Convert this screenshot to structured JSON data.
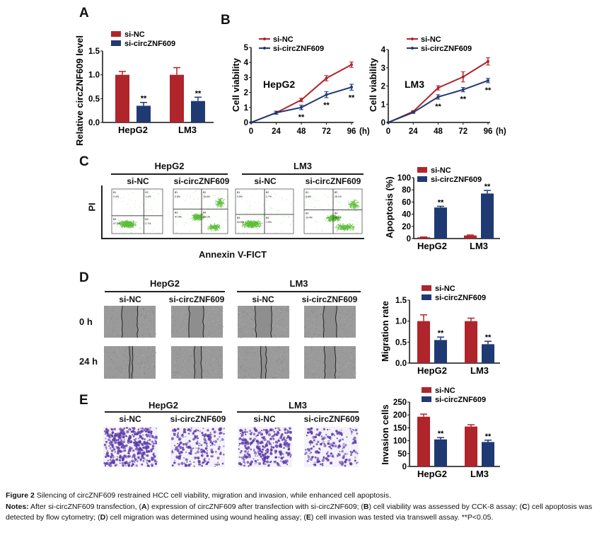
{
  "panel_labels": {
    "a": "A",
    "b": "B",
    "c": "C",
    "d": "D",
    "e": "E"
  },
  "panel_c": {
    "group_labels": [
      "HepG2",
      "LM3"
    ],
    "sub_labels": [
      "si-NC",
      "si-circZNF609",
      "si-NC",
      "si-circZNF609"
    ],
    "y_axis_label": "PI",
    "x_axis_label": "Annexin V-FICT",
    "quadrant_names": [
      "B1",
      "B2",
      "B3",
      "B4"
    ],
    "quadrant_values": [
      [
        "0.4%",
        "1.4%",
        "97.5%",
        "0.7%"
      ],
      [
        "0.8%",
        "16.6%",
        "47.4%",
        "35.1%"
      ],
      [
        "0.5%",
        "2.7%",
        "94.8%",
        "1.9%"
      ],
      [
        "0.6%",
        "26.1%",
        "23.4%",
        "50.0%"
      ]
    ]
  },
  "panel_d": {
    "group_labels": [
      "HepG2",
      "LM3"
    ],
    "sub_labels": [
      "si-NC",
      "si-circZNF609",
      "si-NC",
      "si-circZNF609"
    ],
    "row_labels": [
      "0 h",
      "24 h"
    ]
  },
  "panel_e": {
    "group_labels": [
      "HepG2",
      "LM3"
    ],
    "sub_labels": [
      "si-NC",
      "si-circZNF609",
      "si-NC",
      "si-circZNF609"
    ]
  },
  "colors": {
    "si_nc": "#b0242b",
    "si_circ": "#1f3a73",
    "flow_dots": "#5cbf3a",
    "stain": "#5b3aa8",
    "wound_bg": "#9a9a9a"
  },
  "caption": {
    "title_bold": "Figure 2",
    "title": " Silencing of circZNF609 restrained HCC cell viability, migration and invasion, while enhanced cell apoptosis.",
    "notes_segments": [
      {
        "t": "Notes:",
        "b": true
      },
      {
        "t": " After si-circZNF609 transfection, (",
        "b": false
      },
      {
        "t": "A",
        "b": true
      },
      {
        "t": ") expression of circZNF609 after transfection with si-circZNF609; (",
        "b": false
      },
      {
        "t": "B",
        "b": true
      },
      {
        "t": ") cell viability was assessed by CCK-8 assay; (",
        "b": false
      },
      {
        "t": "C",
        "b": true
      },
      {
        "t": ") cell apoptosis was detected by flow cytometry; (",
        "b": false
      },
      {
        "t": "D",
        "b": true
      },
      {
        "t": ") cell migration was determined using wound healing assay; (",
        "b": false
      },
      {
        "t": "E",
        "b": true
      },
      {
        "t": ") cell invasion was tested via transwell assay. **P<0.05.",
        "b": false
      }
    ]
  },
  "chart_data": [
    {
      "id": "A",
      "type": "bar",
      "title": "",
      "xlabel": "",
      "ylabel": "Relative circZNF609 level",
      "categories": [
        "HepG2",
        "LM3"
      ],
      "ylim": [
        0,
        1.5
      ],
      "yticks": [
        "0.0",
        "0.5",
        "1.0",
        "1.5"
      ],
      "series": [
        {
          "name": "si-NC",
          "values": [
            1.0,
            1.0
          ],
          "errors": [
            0.07,
            0.15
          ]
        },
        {
          "name": "si-circZNF609",
          "values": [
            0.35,
            0.45
          ],
          "errors": [
            0.07,
            0.08
          ]
        }
      ],
      "annotations": [
        "**",
        "**"
      ],
      "legend": "top-left"
    },
    {
      "id": "B1",
      "type": "line",
      "title": "HepG2",
      "xlabel": "(h)",
      "ylabel": "Cell viability",
      "x": [
        0,
        24,
        48,
        72,
        96
      ],
      "xticks": [
        "0",
        "24",
        "48",
        "72",
        "96"
      ],
      "ylim": [
        0,
        5
      ],
      "yticks": [
        "0",
        "1",
        "2",
        "3",
        "4",
        "5"
      ],
      "series": [
        {
          "name": "si-NC",
          "values": [
            0,
            0.65,
            1.5,
            2.95,
            3.85
          ],
          "errors": [
            0,
            0.1,
            0.12,
            0.18,
            0.18
          ]
        },
        {
          "name": "si-circZNF609",
          "values": [
            0,
            0.65,
            1.0,
            1.85,
            2.35
          ],
          "errors": [
            0,
            0.1,
            0.15,
            0.2,
            0.2
          ]
        }
      ],
      "annotations": [
        null,
        null,
        "**",
        "**",
        "**"
      ],
      "legend": "top-left"
    },
    {
      "id": "B2",
      "type": "line",
      "title": "LM3",
      "xlabel": "(h)",
      "ylabel": "Cell viability",
      "x": [
        0,
        24,
        48,
        72,
        96
      ],
      "xticks": [
        "0",
        "24",
        "48",
        "72",
        "96"
      ],
      "ylim": [
        0,
        4
      ],
      "yticks": [
        "0",
        "1",
        "2",
        "3",
        "4"
      ],
      "series": [
        {
          "name": "si-NC",
          "values": [
            0,
            0.6,
            1.9,
            2.5,
            3.35
          ],
          "errors": [
            0,
            0.05,
            0.12,
            0.28,
            0.2
          ]
        },
        {
          "name": "si-circZNF609",
          "values": [
            0,
            0.55,
            1.4,
            1.8,
            2.3
          ],
          "errors": [
            0,
            0.05,
            0.12,
            0.12,
            0.12
          ]
        }
      ],
      "annotations": [
        null,
        null,
        "**",
        "**",
        "**"
      ],
      "legend": "top-left"
    },
    {
      "id": "C",
      "type": "bar",
      "title": "",
      "xlabel": "",
      "ylabel": "Apoptosis (%)",
      "categories": [
        "HepG2",
        "LM3"
      ],
      "ylim": [
        0,
        100
      ],
      "yticks": [
        "0",
        "20",
        "40",
        "60",
        "80",
        "100"
      ],
      "series": [
        {
          "name": "si-NC",
          "values": [
            2,
            5
          ],
          "errors": [
            0.5,
            0.8
          ]
        },
        {
          "name": "si-circZNF609",
          "values": [
            51,
            74
          ],
          "errors": [
            2,
            5
          ]
        }
      ],
      "annotations": [
        "**",
        "**"
      ],
      "legend": "top-left"
    },
    {
      "id": "D",
      "type": "bar",
      "title": "",
      "xlabel": "",
      "ylabel": "Migration rate",
      "categories": [
        "HepG2",
        "LM3"
      ],
      "ylim": [
        0,
        1.5
      ],
      "yticks": [
        "0.0",
        "0.5",
        "1.0",
        "1.5"
      ],
      "series": [
        {
          "name": "si-NC",
          "values": [
            1.0,
            1.0
          ],
          "errors": [
            0.15,
            0.07
          ]
        },
        {
          "name": "si-circZNF609",
          "values": [
            0.55,
            0.45
          ],
          "errors": [
            0.07,
            0.07
          ]
        }
      ],
      "annotations": [
        "**",
        "**"
      ],
      "legend": "top"
    },
    {
      "id": "E",
      "type": "bar",
      "title": "",
      "xlabel": "",
      "ylabel": "Invasion cells",
      "categories": [
        "HepG2",
        "LM3"
      ],
      "ylim": [
        0,
        250
      ],
      "yticks": [
        "0",
        "50",
        "100",
        "150",
        "200",
        "250"
      ],
      "series": [
        {
          "name": "si-NC",
          "values": [
            193,
            155
          ],
          "errors": [
            10,
            7
          ]
        },
        {
          "name": "si-circZNF609",
          "values": [
            105,
            95
          ],
          "errors": [
            7,
            7
          ]
        }
      ],
      "annotations": [
        "**",
        "**"
      ],
      "legend": "top"
    }
  ]
}
